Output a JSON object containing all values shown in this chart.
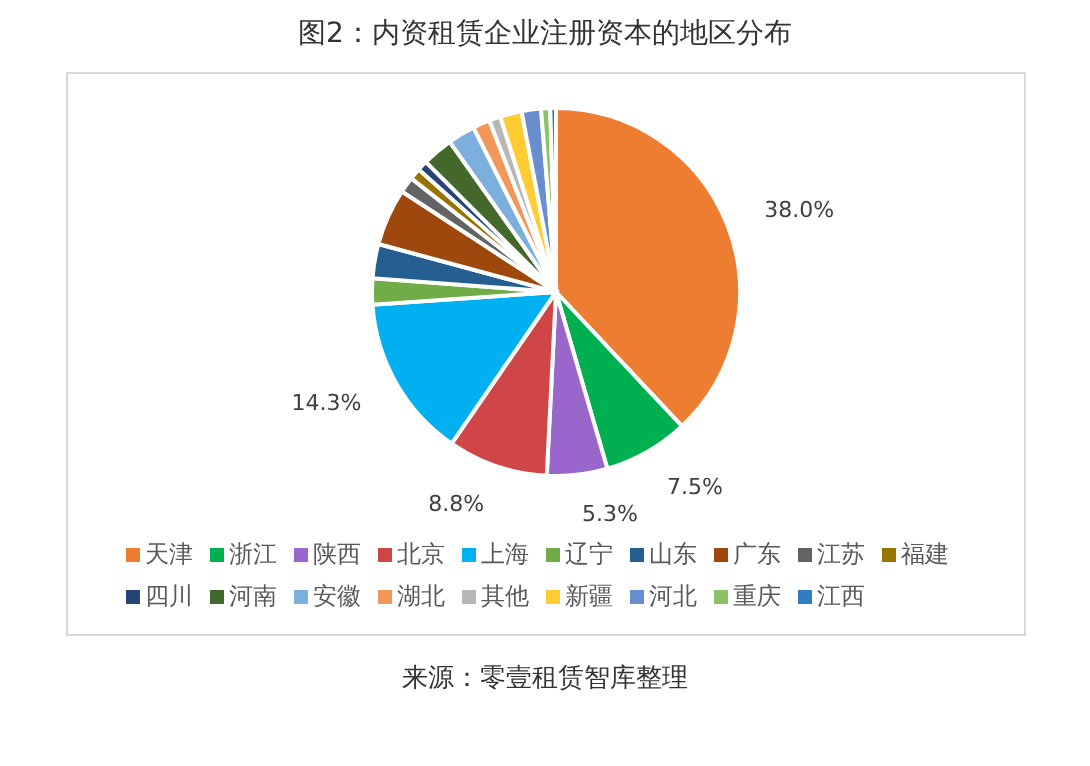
{
  "chart_data": {
    "type": "pie",
    "title": "图2：内资租赁企业注册资本的地区分布",
    "categories": [
      "天津",
      "浙江",
      "陕西",
      "北京",
      "上海",
      "辽宁",
      "山东",
      "广东",
      "江苏",
      "福建",
      "四川",
      "河南",
      "安徽",
      "湖北",
      "其他",
      "新疆",
      "河北",
      "重庆",
      "江西"
    ],
    "values": [
      38.0,
      7.5,
      5.3,
      8.8,
      14.3,
      2.3,
      3.0,
      5.0,
      1.4,
      1.0,
      0.9,
      2.7,
      2.4,
      1.5,
      1.0,
      1.9,
      1.7,
      0.8,
      0.5
    ],
    "colors": [
      "#ed7d31",
      "#00b050",
      "#9966cc",
      "#d04545",
      "#00b0f0",
      "#70ad47",
      "#255e91",
      "#9e480e",
      "#636363",
      "#997300",
      "#264478",
      "#43682b",
      "#7cafdd",
      "#f1975a",
      "#b7b7b7",
      "#ffcd33",
      "#698ed0",
      "#8cc168",
      "#327dc2"
    ],
    "value_labels": [
      "38.0%",
      "7.5%",
      "5.3%",
      "8.8%",
      "14.3%",
      null,
      null,
      null,
      null,
      null,
      null,
      null,
      null,
      null,
      null,
      null,
      null,
      null,
      null
    ],
    "legend": "bottom",
    "annotations": [
      "来源：零壹租赁智库整理"
    ]
  }
}
